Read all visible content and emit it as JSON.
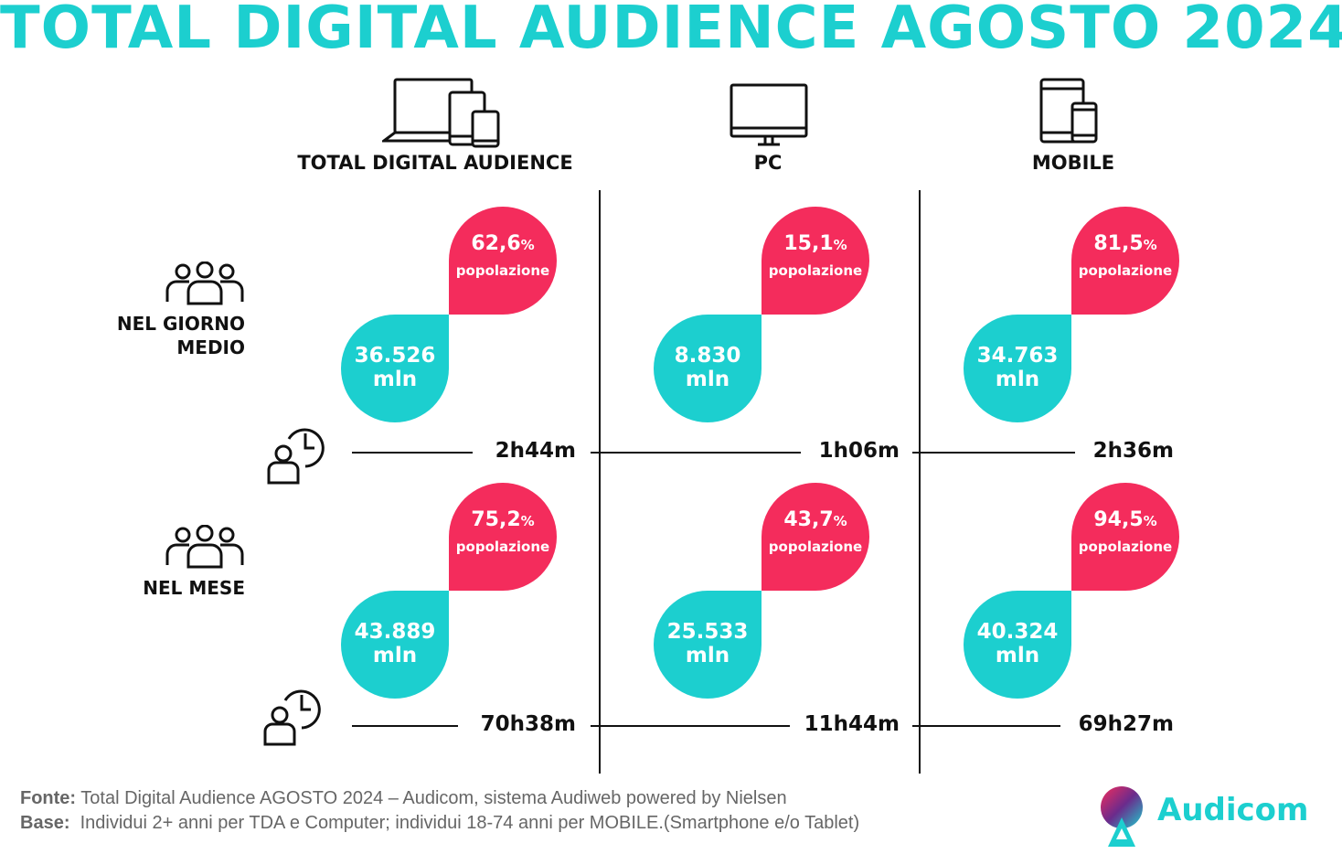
{
  "title": "TOTAL DIGITAL AUDIENCE AGOSTO 2024",
  "columns": [
    {
      "label": "TOTAL DIGITAL AUDIENCE",
      "icon": "devices-icon"
    },
    {
      "label": "PC",
      "icon": "monitor-icon"
    },
    {
      "label": "MOBILE",
      "icon": "tablet-phone-icon"
    }
  ],
  "rows": [
    {
      "label": "NEL GIORNO\nMEDIO",
      "icon": "people-group-icon"
    },
    {
      "label": "NEL MESE",
      "icon": "people-group-icon"
    }
  ],
  "cells": [
    [
      {
        "pct": "62,6",
        "pct_unit": "%",
        "pop_label": "popolazione",
        "users": "36.526",
        "users_unit": "mln",
        "time": "2h44m"
      },
      {
        "pct": "15,1",
        "pct_unit": "%",
        "pop_label": "popolazione",
        "users": "8.830",
        "users_unit": "mln",
        "time": "1h06m"
      },
      {
        "pct": "81,5",
        "pct_unit": "%",
        "pop_label": "popolazione",
        "users": "34.763",
        "users_unit": "mln",
        "time": "2h36m"
      }
    ],
    [
      {
        "pct": "75,2",
        "pct_unit": "%",
        "pop_label": "popolazione",
        "users": "43.889",
        "users_unit": "mln",
        "time": "70h38m"
      },
      {
        "pct": "43,7",
        "pct_unit": "%",
        "pop_label": "popolazione",
        "users": "25.533",
        "users_unit": "mln",
        "time": "11h44m"
      },
      {
        "pct": "94,5",
        "pct_unit": "%",
        "pop_label": "popolazione",
        "users": "40.324",
        "users_unit": "mln",
        "time": "69h27m"
      }
    ]
  ],
  "footer": {
    "fonte_label": "Fonte:",
    "fonte_text": " Total Digital Audience AGOSTO 2024 – Audicom, sistema Audiweb powered by Nielsen",
    "base_label": "Base:",
    "base_text": "  Individui 2+ anni per TDA e Computer; individui 18-74 anni per MOBILE.(Smartphone e/o Tablet)"
  },
  "logo": {
    "text": "Audicom"
  },
  "colors": {
    "teal": "#1ccfcf",
    "pink": "#f42c5c",
    "text": "#111111",
    "footer": "#666666"
  }
}
